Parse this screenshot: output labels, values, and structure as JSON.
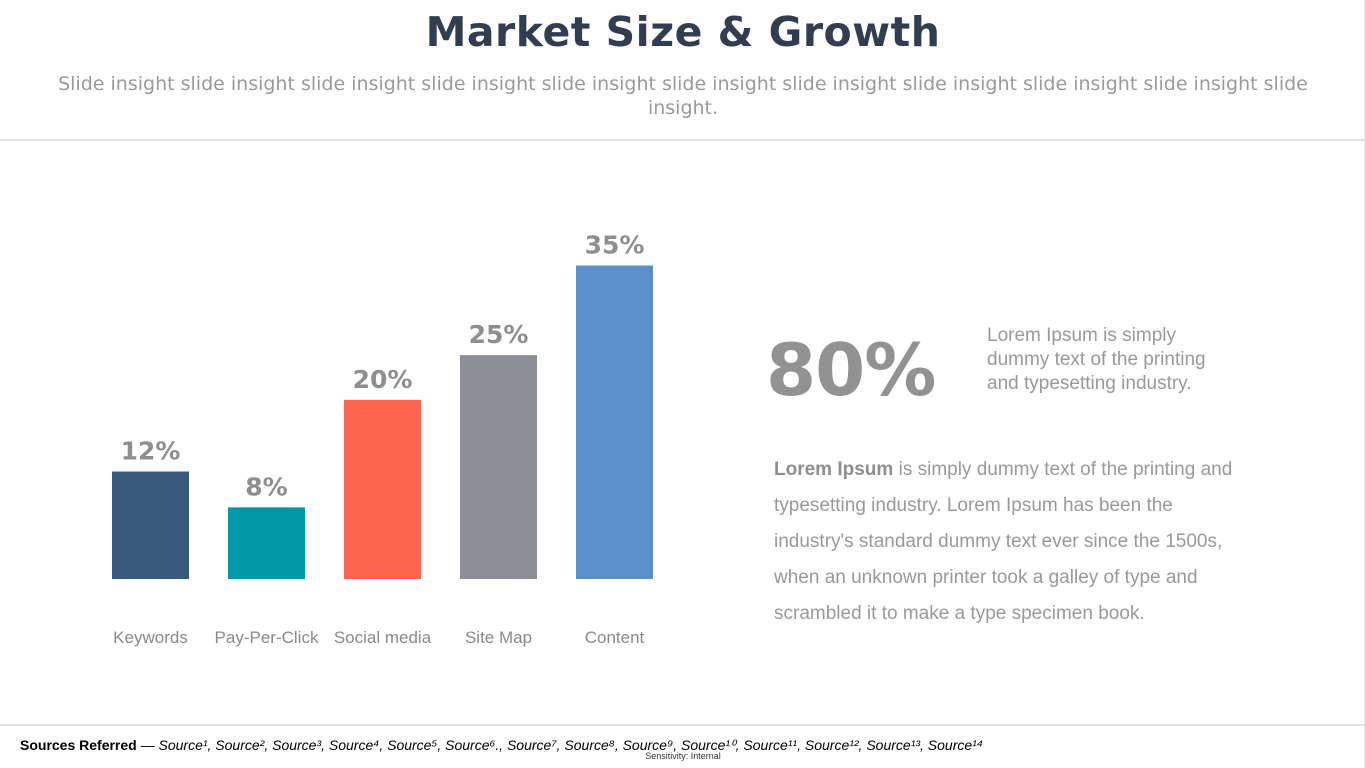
{
  "title": "Market Size & Growth",
  "subtitle": "Slide insight slide insight slide insight slide insight slide insight slide insight slide insight slide insight slide insight slide insight slide insight.",
  "chart_data": {
    "type": "bar",
    "categories": [
      "Keywords",
      "Pay-Per-Click",
      "Social media",
      "Site Map",
      "Content"
    ],
    "values": [
      12,
      8,
      20,
      25,
      35
    ],
    "value_labels": [
      "12%",
      "8%",
      "20%",
      "25%",
      "35%"
    ],
    "colors": [
      "#3a5a7c",
      "#0097a7",
      "#ff6650",
      "#8e8e96",
      "#5b8fcb"
    ],
    "label_color": "#8e8e8e",
    "category_color": "#8a8a8a",
    "title": "",
    "xlabel": "",
    "ylabel": "",
    "ylim": [
      0,
      35
    ],
    "grid": false
  },
  "stat": {
    "value": "80%",
    "description": "Lorem Ipsum is simply dummy text of the printing and typesetting industry."
  },
  "paragraph": {
    "lead": "Lorem Ipsum",
    "text": " is simply dummy text of the printing and typesetting industry. Lorem Ipsum has been the industry's standard dummy text ever since the 1500s, when an unknown printer took a galley of type and scrambled it to make a type specimen book."
  },
  "footer": {
    "sources_label": "Sources Referred",
    "sources_sep": " — ",
    "sources": [
      "Source¹",
      "Source²",
      "Source³",
      "Source⁴",
      "Source⁵",
      "Source⁶.",
      "Source⁷",
      "Source⁸",
      "Source⁹",
      "Source¹⁰",
      "Source¹¹",
      "Source¹²",
      "Source¹³",
      "Source¹⁴"
    ],
    "sensitivity": "Sensitivity: Internal"
  }
}
